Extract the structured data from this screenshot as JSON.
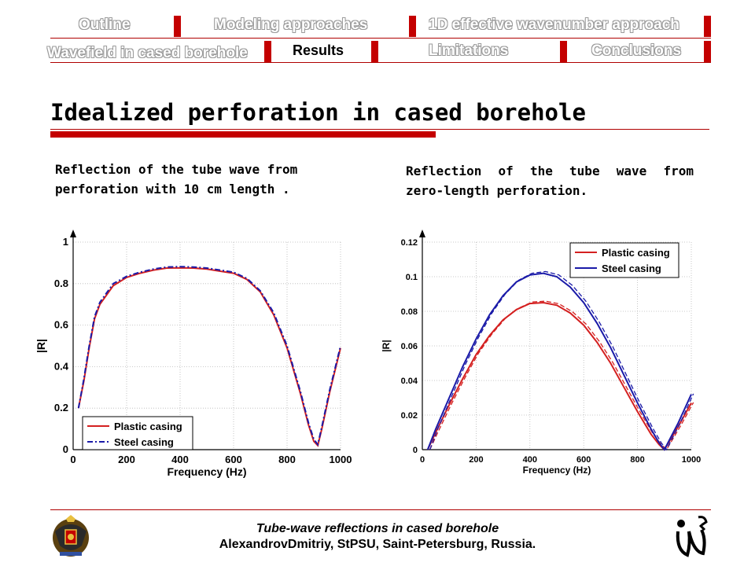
{
  "nav": {
    "outline": "Outline",
    "modeling": "Modeling approaches",
    "effective": "1D effective wavenumber approach",
    "wavefield": "Wavefield in cased borehole",
    "results": "Results",
    "limitations": "Limitations",
    "conclusions": "Conclusions"
  },
  "slide": {
    "title": "Idealized perforation in cased borehole",
    "caption_left": "Reflection of the tube wave from perforation with 10 cm length .",
    "caption_right": "Reflection of the tube wave from zero-length perforation."
  },
  "footer": {
    "line1": "Tube-wave reflections in cased borehole",
    "line2": "AlexandrovDmitriy, StPSU, Saint-Petersburg, Russia."
  },
  "colors": {
    "accent": "#c40000",
    "plastic": "#d42020",
    "steel": "#1a1aa8"
  },
  "chart_data": [
    {
      "type": "line",
      "title": "",
      "xlabel": "Frequency (Hz)",
      "ylabel": "|R|",
      "xlim": [
        0,
        1000
      ],
      "ylim": [
        0,
        1
      ],
      "xticks": [
        "0",
        "200",
        "400",
        "600",
        "800",
        "1000"
      ],
      "yticks": [
        "0",
        "0.2",
        "0.4",
        "0.6",
        "0.8",
        "1"
      ],
      "legend": "bottom-left",
      "grid": true,
      "series": [
        {
          "name": "Plastic casing",
          "style": "solid",
          "x": [
            20,
            40,
            60,
            80,
            100,
            150,
            200,
            250,
            300,
            350,
            400,
            450,
            500,
            550,
            600,
            650,
            700,
            750,
            800,
            850,
            880,
            900,
            915,
            930,
            960,
            1000
          ],
          "y": [
            0.2,
            0.33,
            0.49,
            0.63,
            0.7,
            0.79,
            0.83,
            0.85,
            0.865,
            0.875,
            0.876,
            0.875,
            0.87,
            0.86,
            0.85,
            0.82,
            0.76,
            0.65,
            0.49,
            0.27,
            0.12,
            0.04,
            0.02,
            0.1,
            0.28,
            0.49
          ]
        },
        {
          "name": "Steel casing",
          "style": "dashdot",
          "x": [
            20,
            40,
            60,
            80,
            100,
            150,
            200,
            250,
            300,
            350,
            400,
            450,
            500,
            550,
            600,
            650,
            700,
            750,
            800,
            850,
            880,
            900,
            915,
            930,
            960,
            1000
          ],
          "y": [
            0.2,
            0.34,
            0.5,
            0.64,
            0.71,
            0.8,
            0.835,
            0.855,
            0.87,
            0.88,
            0.882,
            0.88,
            0.875,
            0.865,
            0.855,
            0.825,
            0.765,
            0.66,
            0.5,
            0.28,
            0.13,
            0.05,
            0.025,
            0.11,
            0.29,
            0.5
          ]
        }
      ]
    },
    {
      "type": "line",
      "title": "",
      "xlabel": "Frequency (Hz)",
      "ylabel": "|R|",
      "xlim": [
        0,
        1000
      ],
      "ylim": [
        0,
        0.12
      ],
      "xticks": [
        "0",
        "200",
        "400",
        "600",
        "800",
        "1000"
      ],
      "yticks": [
        "0",
        "0.02",
        "0.04",
        "0.06",
        "0.08",
        "0.1",
        "0.12"
      ],
      "legend": "top-right",
      "grid": true,
      "series": [
        {
          "name": "Plastic casing",
          "style": "solid",
          "x": [
            20,
            50,
            100,
            150,
            200,
            250,
            300,
            350,
            400,
            450,
            500,
            550,
            600,
            650,
            700,
            750,
            800,
            850,
            880,
            900,
            950,
            1000
          ],
          "y": [
            0.0,
            0.01,
            0.026,
            0.041,
            0.055,
            0.066,
            0.075,
            0.081,
            0.0845,
            0.085,
            0.0835,
            0.079,
            0.072,
            0.062,
            0.05,
            0.036,
            0.022,
            0.009,
            0.003,
            0.0,
            0.013,
            0.027
          ]
        },
        {
          "name": "Steel casing",
          "style": "solid",
          "x": [
            20,
            50,
            100,
            150,
            200,
            250,
            300,
            350,
            400,
            450,
            500,
            550,
            600,
            650,
            700,
            750,
            800,
            850,
            880,
            900,
            950,
            1000
          ],
          "y": [
            0.0,
            0.012,
            0.03,
            0.048,
            0.064,
            0.078,
            0.089,
            0.097,
            0.101,
            0.102,
            0.1,
            0.094,
            0.085,
            0.073,
            0.059,
            0.043,
            0.027,
            0.012,
            0.004,
            0.0,
            0.015,
            0.032
          ]
        }
      ]
    }
  ]
}
